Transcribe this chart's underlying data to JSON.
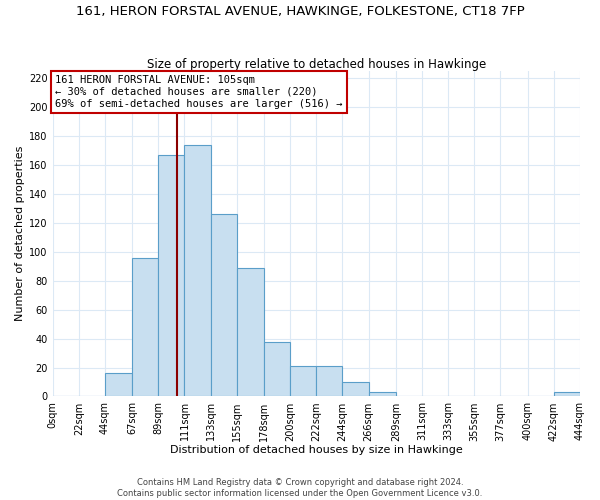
{
  "title": "161, HERON FORSTAL AVENUE, HAWKINGE, FOLKESTONE, CT18 7FP",
  "subtitle": "Size of property relative to detached houses in Hawkinge",
  "xlabel": "Distribution of detached houses by size in Hawkinge",
  "ylabel": "Number of detached properties",
  "bar_edges": [
    0,
    22,
    44,
    67,
    89,
    111,
    133,
    155,
    178,
    200,
    222,
    244,
    266,
    289,
    311,
    333,
    355,
    377,
    400,
    422,
    444
  ],
  "bar_heights": [
    0,
    0,
    16,
    96,
    167,
    174,
    126,
    89,
    38,
    21,
    21,
    10,
    3,
    0,
    0,
    0,
    0,
    0,
    0,
    3
  ],
  "bar_color": "#c8dff0",
  "bar_edge_color": "#5a9ec9",
  "property_value": 105,
  "property_line_color": "#8b0000",
  "annotation_text": "161 HERON FORSTAL AVENUE: 105sqm\n← 30% of detached houses are smaller (220)\n69% of semi-detached houses are larger (516) →",
  "annotation_box_color": "#ffffff",
  "annotation_box_edge": "#c00000",
  "ylim": [
    0,
    225
  ],
  "yticks": [
    0,
    20,
    40,
    60,
    80,
    100,
    120,
    140,
    160,
    180,
    200,
    220
  ],
  "tick_labels": [
    "0sqm",
    "22sqm",
    "44sqm",
    "67sqm",
    "89sqm",
    "111sqm",
    "133sqm",
    "155sqm",
    "178sqm",
    "200sqm",
    "222sqm",
    "244sqm",
    "266sqm",
    "289sqm",
    "311sqm",
    "333sqm",
    "355sqm",
    "377sqm",
    "400sqm",
    "422sqm",
    "444sqm"
  ],
  "footer1": "Contains HM Land Registry data © Crown copyright and database right 2024.",
  "footer2": "Contains public sector information licensed under the Open Government Licence v3.0.",
  "background_color": "#ffffff",
  "grid_color": "#dce9f5",
  "title_fontsize": 9.5,
  "subtitle_fontsize": 8.5,
  "axis_label_fontsize": 8,
  "tick_fontsize": 7,
  "footer_fontsize": 6
}
